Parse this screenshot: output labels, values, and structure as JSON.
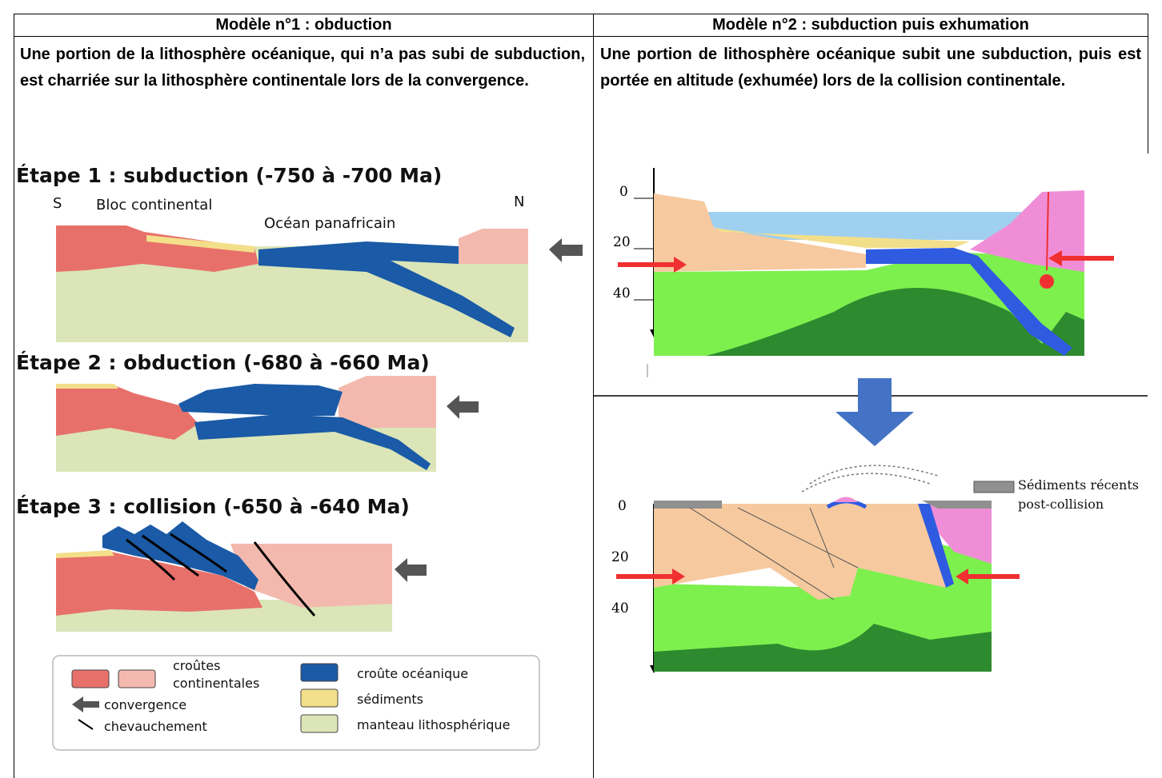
{
  "table": {
    "col1_header": "Modèle n°1 : obduction",
    "col2_header": "Modèle n°2 : subduction puis exhumation",
    "col1_intro": "Une portion de la lithosphère océanique, qui n’a pas subi de subduction, est charriée sur la lithosphère continentale lors de la convergence.",
    "col2_intro": "Une portion de lithosphère océanique subit une subduction, puis est portée en altitude (exhumée) lors de la collision continentale."
  },
  "model1": {
    "step1_title": "Étape 1 : subduction (-750 à -700 Ma)",
    "step2_title": "Étape 2 : obduction (-680 à -660 Ma)",
    "step3_title": "Étape 3 : collision (-650 à -640 Ma)",
    "label_S": "S",
    "label_N": "N",
    "label_bloc": "Bloc continental",
    "label_ocean": "Océan panafricain",
    "legend": {
      "crust_line1": "croûtes",
      "crust_line2": "continentales",
      "convergence": "convergence",
      "chevauchement": "chevauchement",
      "ocean_crust": "croûte océanique",
      "sediments": "sédiments",
      "mantle": "manteau lithosphérique"
    },
    "colors": {
      "continental_dark": "#e8706a",
      "continental_light": "#f4b9ae",
      "oceanic_crust": "#1a5aa6",
      "sediments": "#f3df8a",
      "mantle": "#dbe5b8",
      "arrow": "#555555"
    }
  },
  "model2": {
    "depth_ticks": [
      "0",
      "20",
      "40"
    ],
    "legend_recent_line1": "Sédiments récents",
    "legend_recent_line2": "post-collision",
    "colors": {
      "continent": "#f6c99f",
      "ocean": "#9fd0f0",
      "mantle": "#7df04e",
      "deep_mantle": "#2e8a2e",
      "oceanic_crust": "#2f5be0",
      "pink_plate": "#ef8ed6",
      "red_arrow": "#f03030",
      "blue_arrow": "#4472c4",
      "recent_sed": "#909090"
    }
  }
}
